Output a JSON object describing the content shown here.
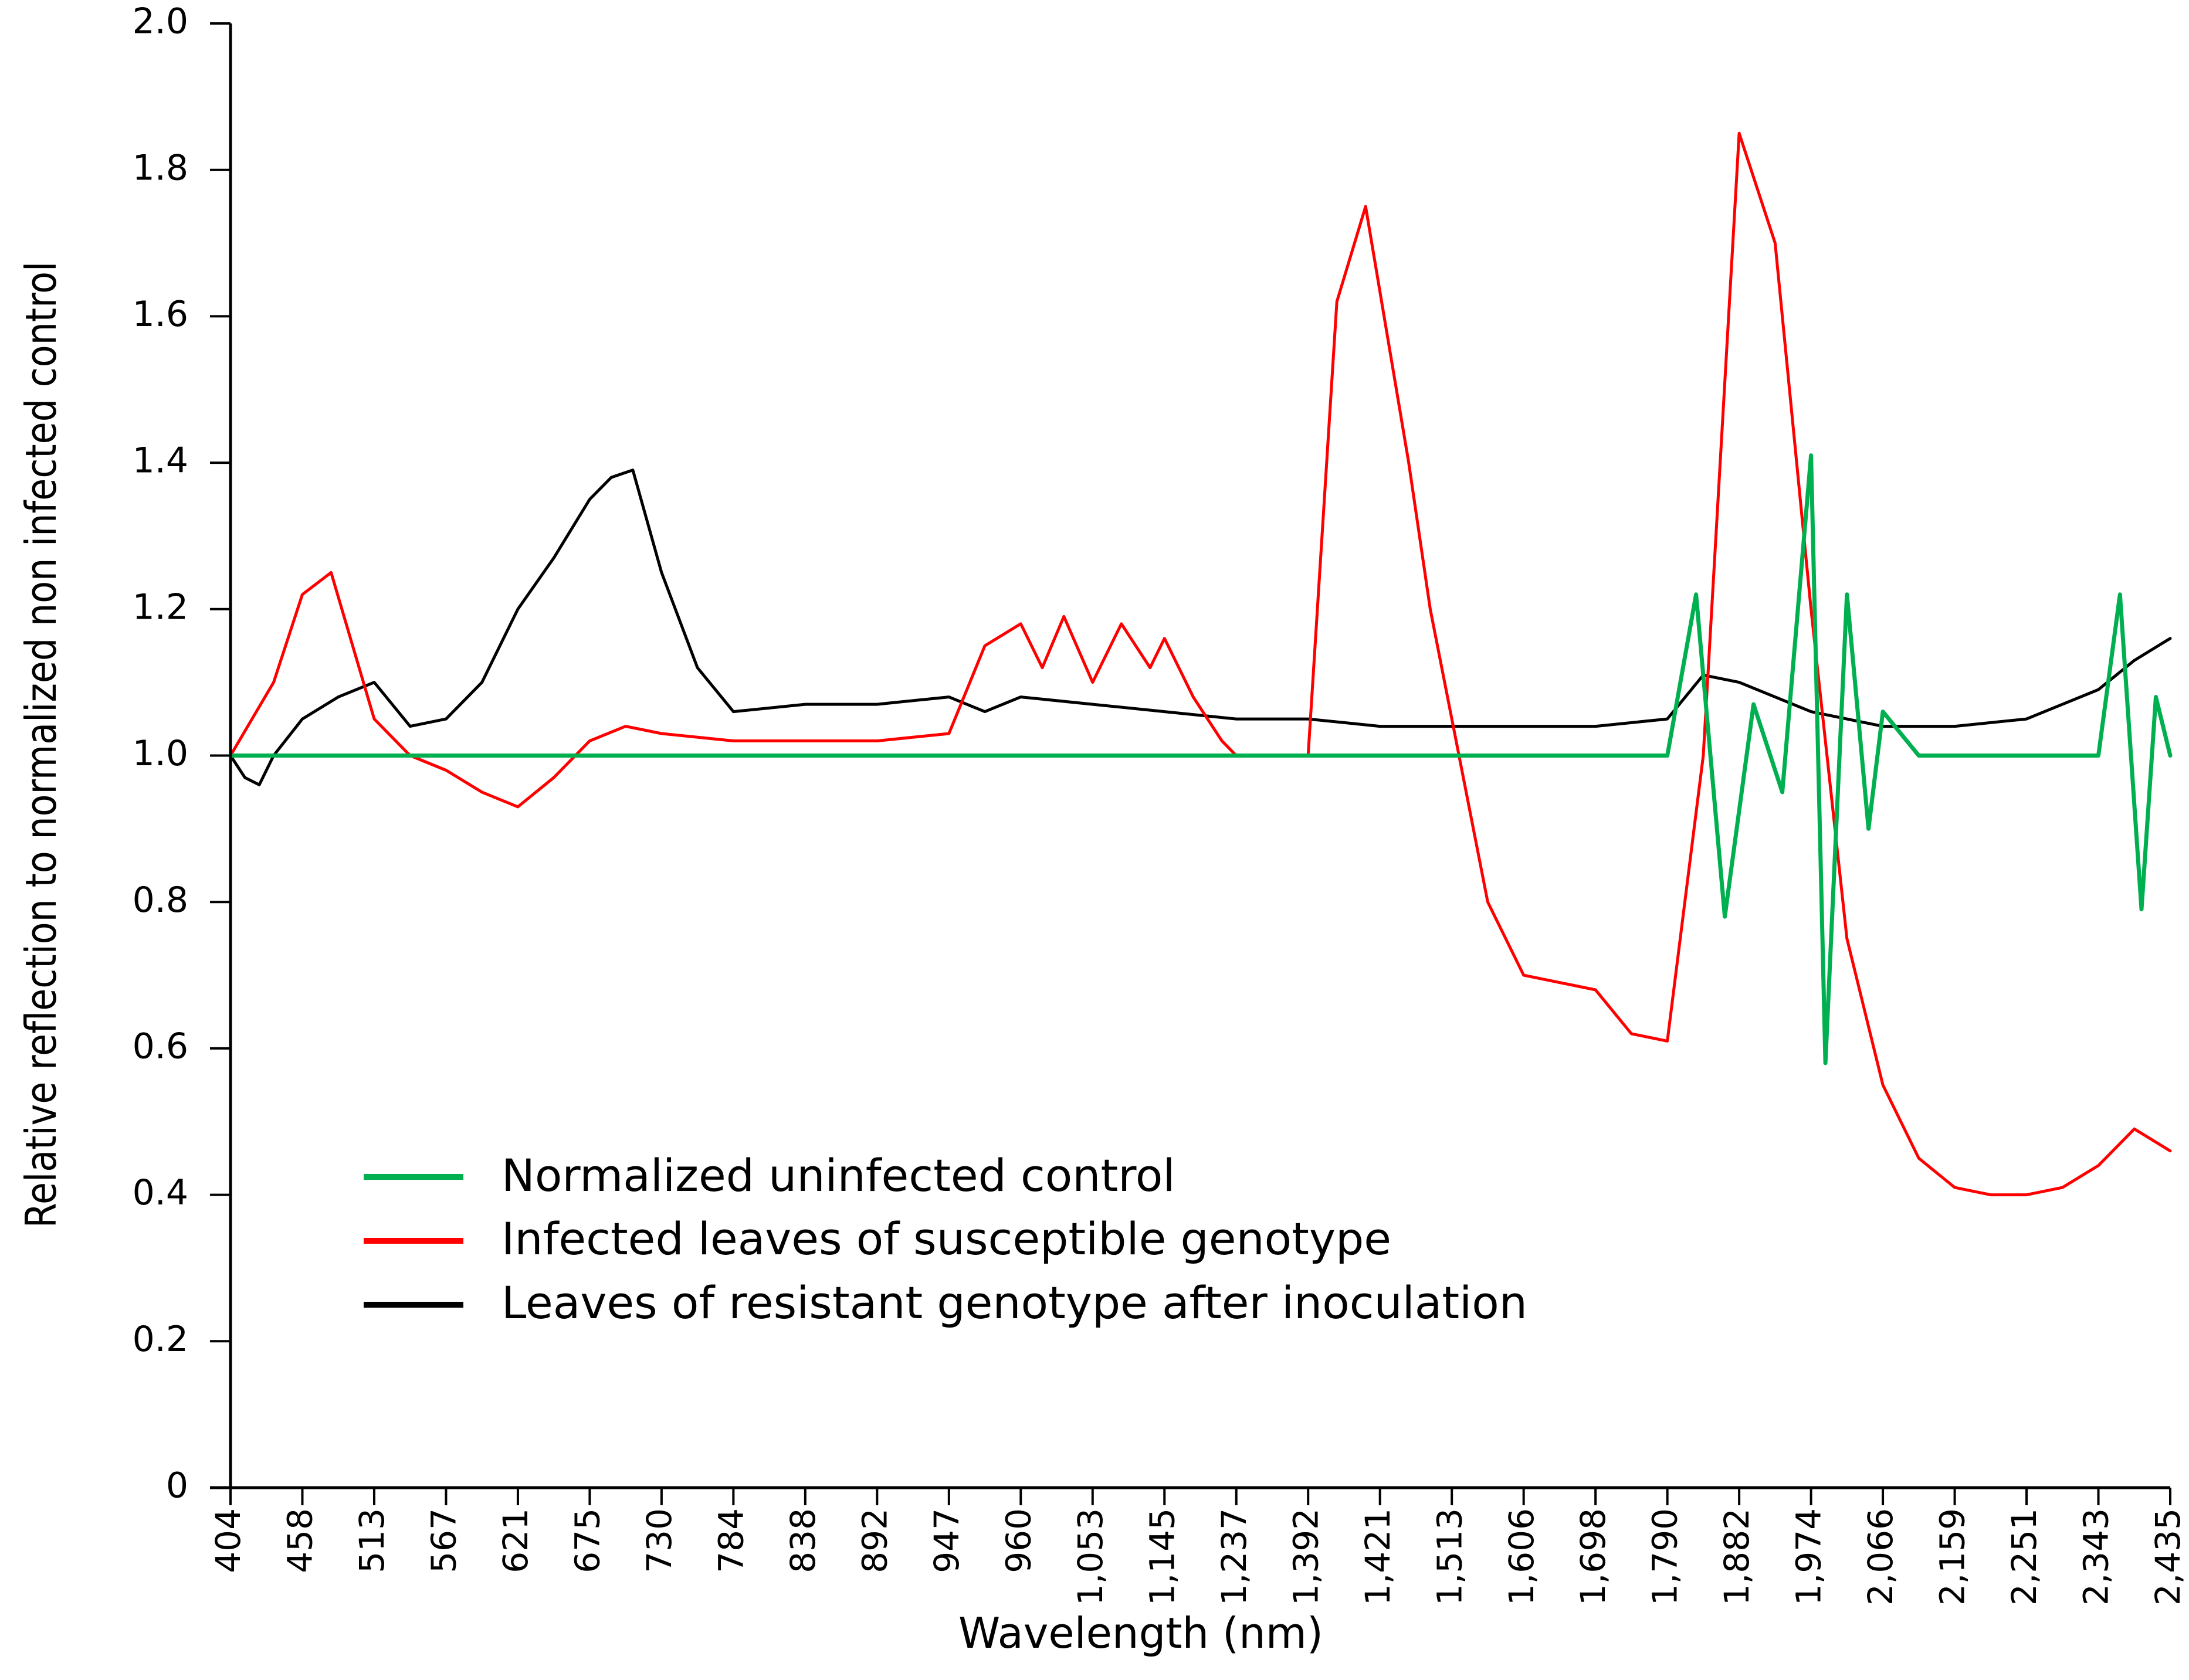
{
  "chart_data": {
    "type": "line",
    "title": "",
    "xlabel": "Wavelength (nm)",
    "ylabel": "Relative reflection to normalized non infected control",
    "ylim": [
      0,
      2.0
    ],
    "yticks": [
      "0",
      "0.2",
      "0.4",
      "0.6",
      "0.8",
      "1.0",
      "1.2",
      "1.4",
      "1.6",
      "1.8",
      "2.0"
    ],
    "ytick_values": [
      0,
      0.2,
      0.4,
      0.6,
      0.8,
      1.0,
      1.2,
      1.4,
      1.6,
      1.8,
      2.0
    ],
    "categories": [
      "404",
      "458",
      "513",
      "567",
      "621",
      "675",
      "730",
      "784",
      "838",
      "892",
      "947",
      "960",
      "1,053",
      "1,145",
      "1,237",
      "1,392",
      "1,421",
      "1,513",
      "1,606",
      "1,698",
      "1,790",
      "1,882",
      "1,974",
      "2,066",
      "2,159",
      "2,251",
      "2,343",
      "2,435"
    ],
    "grid": false,
    "legend_position": "lower-left",
    "series": [
      {
        "name": "Normalized uninfected control",
        "color": "#00b050",
        "x": [
          0,
          1,
          2,
          5,
          10,
          15,
          16,
          18,
          20,
          20.4,
          20.8,
          21.2,
          21.6,
          22,
          22.2,
          22.5,
          22.8,
          23,
          23.5,
          24,
          26,
          26.3,
          26.6,
          26.8,
          27
        ],
        "values": [
          1.0,
          1.0,
          1.0,
          1.0,
          1.0,
          1.0,
          1.0,
          1.0,
          1.0,
          1.22,
          0.78,
          1.07,
          0.95,
          1.41,
          0.58,
          1.22,
          0.9,
          1.06,
          1.0,
          1.0,
          1.0,
          1.22,
          0.79,
          1.08,
          1.0
        ]
      },
      {
        "name": "Infected leaves of susceptible genotype",
        "color": "#ff0000",
        "x": [
          0,
          0.3,
          0.6,
          1,
          1.4,
          1.7,
          2,
          2.5,
          3,
          3.5,
          4,
          4.5,
          5,
          5.5,
          6,
          7,
          8,
          9,
          10,
          10.5,
          11,
          11.3,
          11.6,
          12,
          12.4,
          12.8,
          13,
          13.4,
          13.8,
          14,
          14.5,
          15,
          15.4,
          15.8,
          16.4,
          16.7,
          17,
          17.5,
          18,
          19,
          19.5,
          20,
          20.5,
          21,
          21.5,
          22,
          22.5,
          23,
          23.5,
          24,
          24.5,
          25,
          25.5,
          26,
          26.5,
          27
        ],
        "values": [
          1.0,
          1.05,
          1.1,
          1.22,
          1.25,
          1.15,
          1.05,
          1.0,
          0.98,
          0.95,
          0.93,
          0.97,
          1.02,
          1.04,
          1.03,
          1.02,
          1.02,
          1.02,
          1.03,
          1.15,
          1.18,
          1.12,
          1.19,
          1.1,
          1.18,
          1.12,
          1.16,
          1.08,
          1.02,
          1.0,
          1.0,
          1.0,
          1.62,
          1.75,
          1.4,
          1.2,
          1.05,
          0.8,
          0.7,
          0.68,
          0.62,
          0.61,
          1.0,
          1.85,
          1.7,
          1.2,
          0.75,
          0.55,
          0.45,
          0.41,
          0.4,
          0.4,
          0.41,
          0.44,
          0.49,
          0.46
        ]
      },
      {
        "name": "Leaves of resistant genotype after inoculation",
        "color": "#000000",
        "x": [
          0,
          0.2,
          0.4,
          0.6,
          1,
          1.5,
          2,
          2.5,
          3,
          3.5,
          4,
          4.5,
          5,
          5.3,
          5.6,
          6,
          6.5,
          7,
          8,
          9,
          10,
          10.5,
          11,
          12,
          13,
          14,
          15,
          16,
          17,
          18,
          19,
          20,
          20.5,
          21,
          22,
          23,
          24,
          25,
          26,
          26.5,
          27
        ],
        "values": [
          1.0,
          0.97,
          0.96,
          1.0,
          1.05,
          1.08,
          1.1,
          1.04,
          1.05,
          1.1,
          1.2,
          1.27,
          1.35,
          1.38,
          1.39,
          1.25,
          1.12,
          1.06,
          1.07,
          1.07,
          1.08,
          1.06,
          1.08,
          1.07,
          1.06,
          1.05,
          1.05,
          1.04,
          1.04,
          1.04,
          1.04,
          1.05,
          1.11,
          1.1,
          1.06,
          1.04,
          1.04,
          1.05,
          1.09,
          1.13,
          1.16
        ]
      }
    ]
  }
}
